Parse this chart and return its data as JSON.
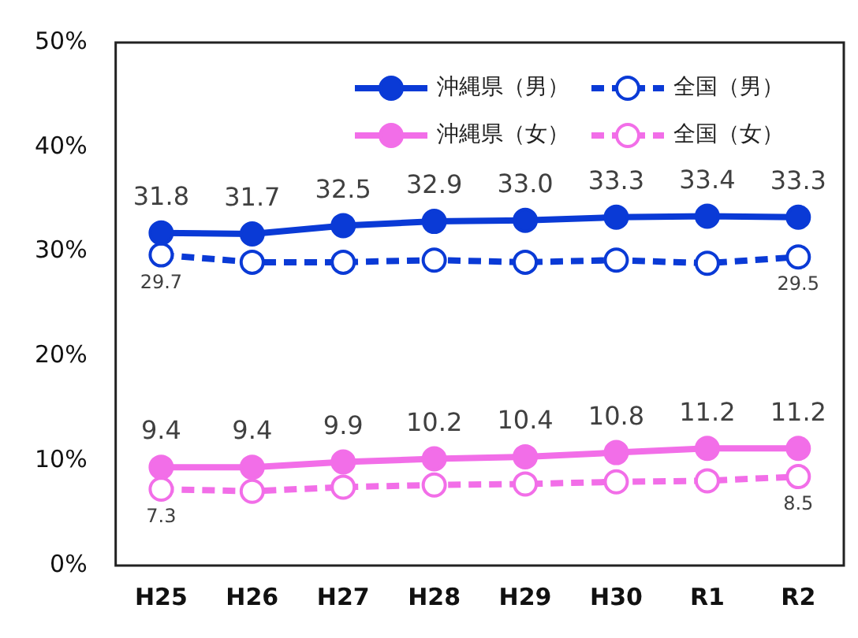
{
  "chart_data": {
    "type": "line",
    "categories": [
      "H25",
      "H26",
      "H27",
      "H28",
      "H29",
      "H30",
      "R1",
      "R2"
    ],
    "series": [
      {
        "name": "沖縄県（男）",
        "color": "#0a3ad6",
        "line_style": "solid",
        "values": [
          31.8,
          31.7,
          32.5,
          32.9,
          33.0,
          33.3,
          33.4,
          33.3
        ],
        "value_labels": [
          "31.8",
          "31.7",
          "32.5",
          "32.9",
          "33.0",
          "33.3",
          "33.4",
          "33.3"
        ]
      },
      {
        "name": "全国（男）",
        "color": "#0a3ad6",
        "line_style": "dashed",
        "values": [
          29.7,
          29.0,
          29.0,
          29.2,
          29.0,
          29.2,
          28.9,
          29.5
        ],
        "value_labels": [
          "29.7",
          null,
          null,
          null,
          null,
          null,
          null,
          "29.5"
        ]
      },
      {
        "name": "沖縄県（女）",
        "color": "#f26ee8",
        "line_style": "solid",
        "values": [
          9.4,
          9.4,
          9.9,
          10.2,
          10.4,
          10.8,
          11.2,
          11.2
        ],
        "value_labels": [
          "9.4",
          "9.4",
          "9.9",
          "10.2",
          "10.4",
          "10.8",
          "11.2",
          "11.2"
        ]
      },
      {
        "name": "全国（女）",
        "color": "#f26ee8",
        "line_style": "dashed",
        "values": [
          7.3,
          7.1,
          7.5,
          7.7,
          7.8,
          8.0,
          8.1,
          8.5
        ],
        "value_labels": [
          "7.3",
          null,
          null,
          null,
          null,
          null,
          null,
          "8.5"
        ]
      }
    ],
    "ylim": [
      0,
      50
    ],
    "yticks": [
      {
        "value": 0,
        "label": "0%"
      },
      {
        "value": 10,
        "label": "10%"
      },
      {
        "value": 20,
        "label": "20%"
      },
      {
        "value": 30,
        "label": "30%"
      },
      {
        "value": 40,
        "label": "40%"
      },
      {
        "value": 50,
        "label": "50%"
      }
    ],
    "grid": false,
    "legend": "top right",
    "marker": "circle"
  }
}
